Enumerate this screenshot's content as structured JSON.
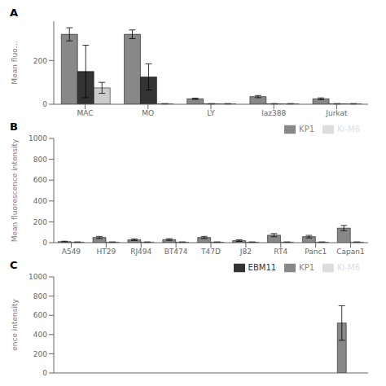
{
  "chart_data": [
    {
      "type": "bar",
      "title": "A",
      "ylabel": "Mean fluo…",
      "categories": [
        "MAC",
        "MO",
        "LY",
        "Iaz388",
        "Jurkat"
      ],
      "series": [
        {
          "name": "KP1",
          "color": "#888888",
          "values": [
            320,
            320,
            25,
            35,
            25
          ],
          "errors": [
            30,
            20,
            3,
            5,
            4
          ]
        },
        {
          "name": "EBM11",
          "color": "#333333",
          "values": [
            150,
            125,
            2,
            2,
            2
          ],
          "errors": [
            120,
            60,
            1,
            1,
            1
          ]
        },
        {
          "name": "Ki-M6",
          "color": "#cccccc",
          "values": [
            75,
            2,
            2,
            2,
            2
          ],
          "errors": [
            25,
            1,
            1,
            1,
            1
          ]
        }
      ],
      "ylim": [
        0,
        380
      ],
      "yticks": [
        0,
        200
      ],
      "grid": false
    },
    {
      "type": "bar",
      "title": "B",
      "ylabel": "Mean fluorescence intensity",
      "categories": [
        "A549",
        "HT29",
        "RJ494",
        "BT474",
        "T47D",
        "J82",
        "RT4",
        "Panc1",
        "Capan1"
      ],
      "series": [
        {
          "name": "KP1",
          "color": "#888888",
          "values": [
            10,
            50,
            28,
            30,
            50,
            20,
            72,
            58,
            140
          ],
          "errors": [
            4,
            10,
            8,
            8,
            10,
            8,
            15,
            12,
            25
          ]
        },
        {
          "name": "Ki-M6",
          "color": "#dddddd",
          "values": [
            5,
            5,
            5,
            5,
            5,
            5,
            5,
            5,
            5
          ],
          "errors": [
            2,
            2,
            2,
            2,
            2,
            2,
            2,
            2,
            2
          ]
        }
      ],
      "ylim": [
        0,
        1000
      ],
      "yticks": [
        0,
        200,
        400,
        600,
        800,
        1000
      ],
      "grid": false,
      "legend": "upper right"
    },
    {
      "type": "bar",
      "title": "C",
      "ylabel": "ence intensity",
      "categories": [
        null,
        null,
        null,
        null,
        null,
        null,
        null,
        null,
        null
      ],
      "series": [
        {
          "name": "KP1",
          "color": "#888888",
          "values": [
            null,
            null,
            null,
            null,
            null,
            null,
            null,
            null,
            520
          ],
          "errors": [
            null,
            null,
            null,
            null,
            null,
            null,
            null,
            null,
            180
          ]
        },
        {
          "name": "EBM11",
          "color": "#333333",
          "values": [
            null,
            null,
            null,
            null,
            null,
            null,
            null,
            null,
            null
          ]
        },
        {
          "name": "Ki-M6",
          "color": "#dddddd",
          "values": [
            null,
            null,
            null,
            null,
            null,
            null,
            null,
            null,
            null
          ]
        }
      ],
      "ylim": [
        0,
        1000
      ],
      "yticks": [
        0,
        200,
        400,
        600,
        800,
        1000
      ],
      "grid": false,
      "legend": "upper right",
      "tick_labels": "y"
    }
  ]
}
